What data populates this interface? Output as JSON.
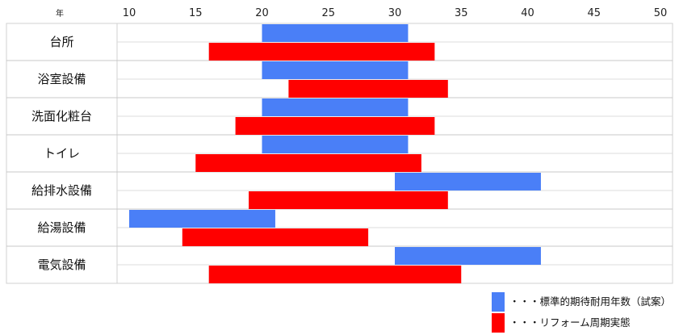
{
  "chart_data": {
    "type": "bar",
    "orientation": "horizontal-range",
    "unit_label": "年",
    "xlim": [
      10,
      50
    ],
    "x_ticks": [
      10,
      15,
      20,
      25,
      30,
      35,
      40,
      45,
      50
    ],
    "categories": [
      "台所",
      "浴室設備",
      "洗面化粧台",
      "トイレ",
      "給排水設備",
      "給湯設備",
      "電気設備"
    ],
    "series": [
      {
        "name": "・・・標準的期待耐用年数（試案）",
        "color": "#4a7ff7",
        "ranges": [
          [
            20,
            31
          ],
          [
            20,
            31
          ],
          [
            20,
            31
          ],
          [
            20,
            31
          ],
          [
            30,
            41
          ],
          [
            10,
            21
          ],
          [
            30,
            41
          ]
        ]
      },
      {
        "name": "・・・リフォーム周期実態",
        "color": "#ff0000",
        "ranges": [
          [
            16,
            33
          ],
          [
            22,
            34
          ],
          [
            18,
            33
          ],
          [
            15,
            32
          ],
          [
            19,
            34
          ],
          [
            14,
            28
          ],
          [
            16,
            35
          ]
        ]
      }
    ],
    "grid": true,
    "legend_position": "bottom-right"
  }
}
